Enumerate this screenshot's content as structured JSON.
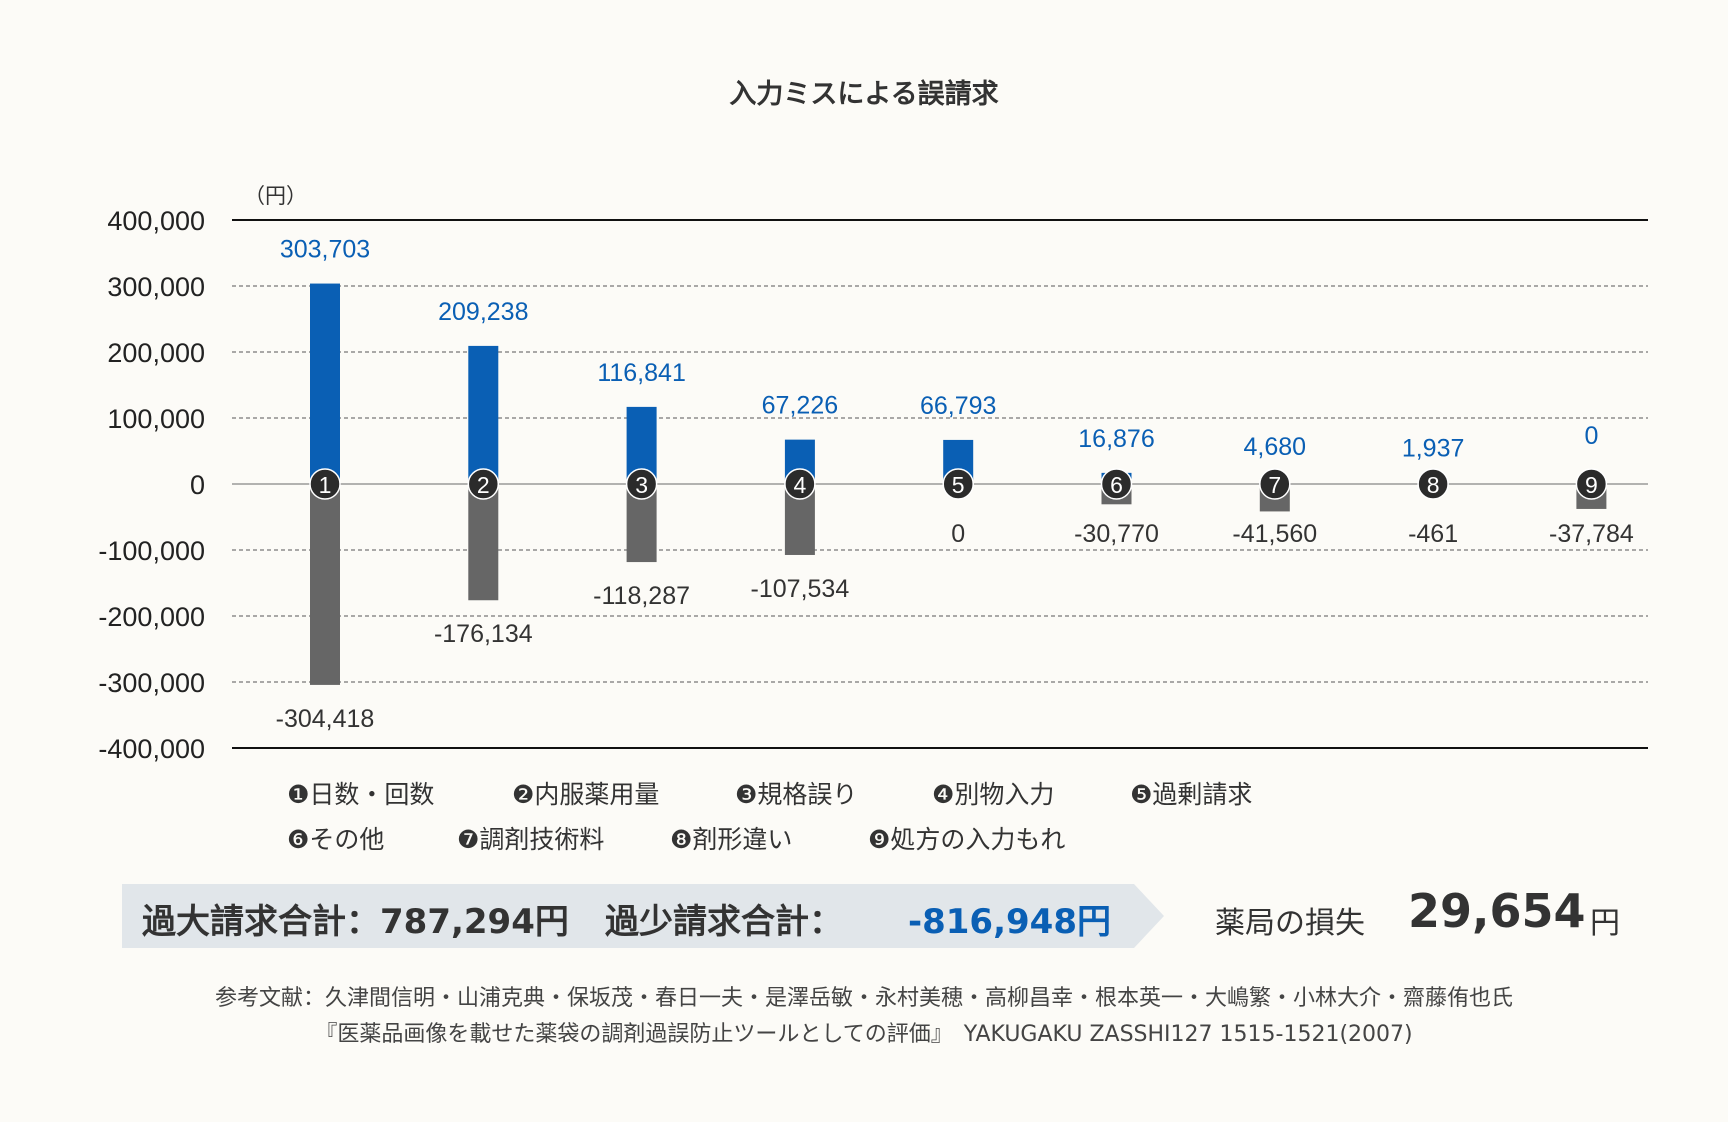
{
  "title": "入力ミスによる誤請求",
  "chart_data": {
    "type": "bar",
    "title": "入力ミスによる誤請求",
    "unit_label": "（円）",
    "ylim": [
      -400000,
      400000
    ],
    "yticks": [
      400000,
      300000,
      200000,
      100000,
      0,
      -100000,
      -200000,
      -300000,
      -400000
    ],
    "ytick_labels": [
      "400,000",
      "300,000",
      "200,000",
      "100,000",
      "0",
      "-100,000",
      "-200,000",
      "-300,000",
      "-400,000"
    ],
    "categories": [
      "❶",
      "❷",
      "❸",
      "❹",
      "❺",
      "❻",
      "❼",
      "❽",
      "❾"
    ],
    "series": [
      {
        "color": "#0a5fb4",
        "values": [
          303703,
          209238,
          116841,
          67226,
          66793,
          16876,
          4680,
          1937,
          0
        ],
        "labels": [
          "303,703",
          "209,238",
          "116,841",
          "67,226",
          "66,793",
          "16,876",
          "4,680",
          "1,937",
          "0"
        ]
      },
      {
        "color": "#666666",
        "values": [
          -304418,
          -176134,
          -118287,
          -107534,
          0,
          -30770,
          -41560,
          -461,
          -37784
        ],
        "labels": [
          "-304,418",
          "-176,134",
          "-118,287",
          "-107,534",
          "0",
          "-30,770",
          "-41,560",
          "-461",
          "-37,784"
        ]
      }
    ],
    "legend": [
      [
        "❶日数・回数",
        "❷内服薬用量",
        "❸規格誤り",
        "❹別物入力",
        "❺過剰請求"
      ],
      [
        "❻その他",
        "❼調剤技術料",
        "❽剤形違い",
        "❾処方の入力もれ"
      ]
    ]
  },
  "summary": {
    "over_label": "過大請求合計：787,294円",
    "under_label": "過少請求合計：",
    "under_value": "-816,948円",
    "loss_label": "薬局の損失",
    "loss_value": "29,654",
    "loss_unit": "円"
  },
  "reference": {
    "line1": "参考文献：久津間信明・山浦克典・保坂茂・春日一夫・是澤岳敏・永村美穂・高柳昌幸・根本英一・大嶋繁・小林大介・齋藤侑也氏",
    "line2": "『医薬品画像を載せた薬袋の調剤過誤防止ツールとしての評価』　YAKUGAKU ZASSHI127 1515-1521(2007)"
  }
}
